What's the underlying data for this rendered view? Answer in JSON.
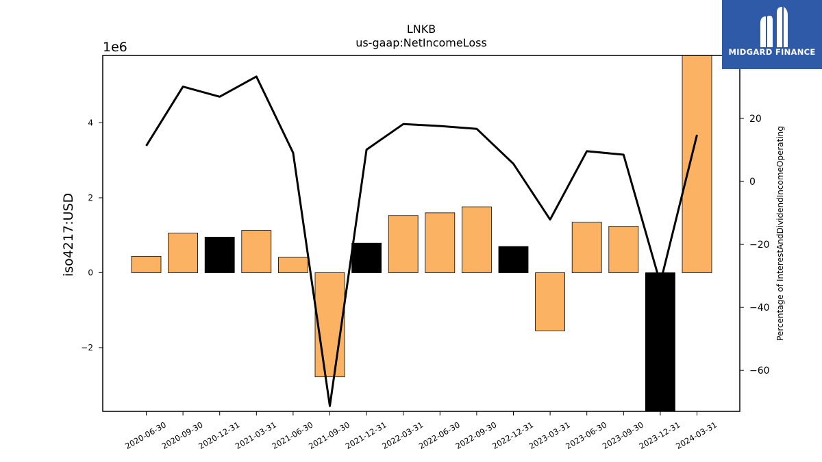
{
  "brand": {
    "name": "MIDGARD FINANCE",
    "logo_icon": "midgard-finance-logo-icon",
    "background_color": "#2f5aa8"
  },
  "chart_data": {
    "type": "bar",
    "title": "LNKB",
    "subtitle": "us-gaap:NetIncomeLoss",
    "ylabel": "iso4217:USD",
    "y_offset_label": "1e6",
    "y2label": "Percentage of InterestAndDividendIncomeOperating",
    "categories": [
      "2020-06-30",
      "2020-09-30",
      "2020-12-31",
      "2021-03-31",
      "2021-06-30",
      "2021-09-30",
      "2021-12-31",
      "2022-03-31",
      "2022-06-30",
      "2022-09-30",
      "2022-12-31",
      "2023-03-31",
      "2023-06-30",
      "2023-09-30",
      "2023-12-31",
      "2024-03-31"
    ],
    "ylim": [
      -3.7,
      5.8
    ],
    "yticks": [
      -2,
      0,
      2,
      4
    ],
    "ytick_labels": [
      "−2",
      "0",
      "2",
      "4"
    ],
    "y2lim": [
      -73,
      40
    ],
    "y2ticks": [
      -60,
      -40,
      -20,
      0,
      20
    ],
    "y2tick_labels": [
      "−60",
      "−40",
      "−20",
      "0",
      "20"
    ],
    "series": [
      {
        "kind": "bar",
        "axis": "left",
        "values": [
          0.44,
          1.06,
          0.95,
          1.13,
          0.41,
          -2.78,
          0.79,
          1.53,
          1.6,
          1.76,
          0.7,
          -1.55,
          1.35,
          1.24,
          -3.85,
          5.85
        ],
        "colors": [
          "#fbb263",
          "#fbb263",
          "#000000",
          "#fbb263",
          "#fbb263",
          "#fbb263",
          "#000000",
          "#fbb263",
          "#fbb263",
          "#fbb263",
          "#000000",
          "#fbb263",
          "#fbb263",
          "#fbb263",
          "#000000",
          "#fbb263"
        ]
      },
      {
        "kind": "line",
        "axis": "right",
        "color": "#000000",
        "values": [
          11.3,
          30.1,
          26.9,
          33.3,
          9.1,
          -71.3,
          10.1,
          18.2,
          17.6,
          16.7,
          5.6,
          -12.1,
          9.6,
          8.5,
          -32.3,
          14.8
        ]
      }
    ],
    "grid": false,
    "legend": "none"
  }
}
